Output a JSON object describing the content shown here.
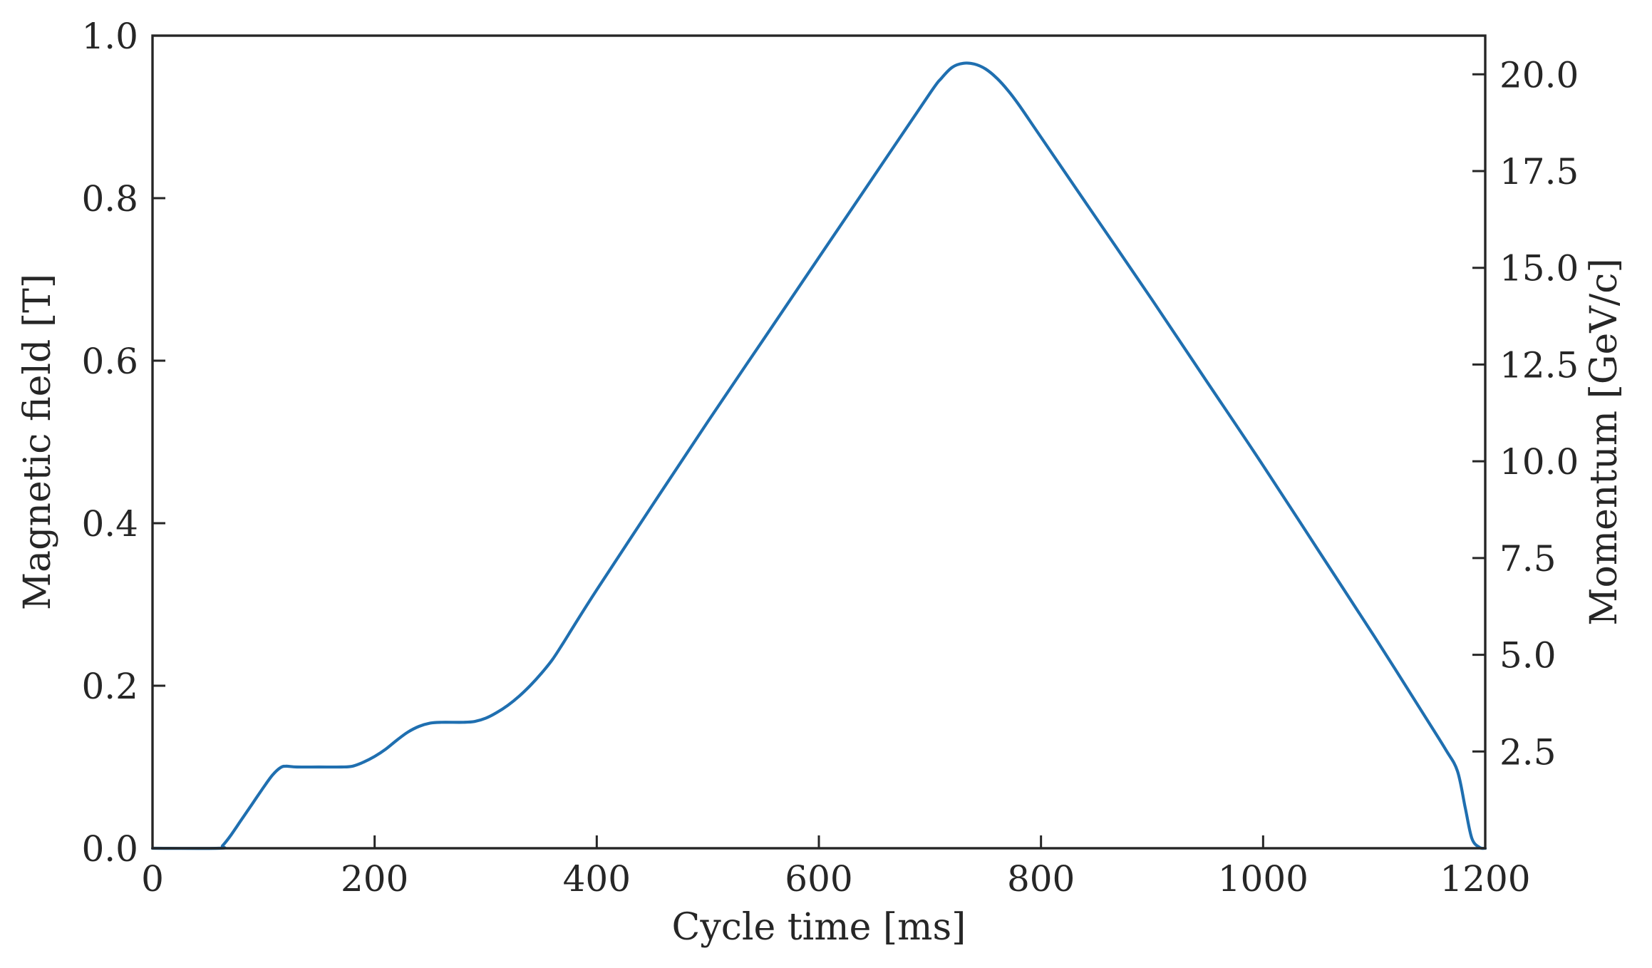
{
  "chart_data": {
    "type": "line",
    "title": "",
    "xlabel": "Cycle time [ms]",
    "ylabel": "Magnetic field [T]",
    "y2label": "Momentum [GeV/c]",
    "xlim": [
      0,
      1200
    ],
    "ylim": [
      0,
      1.0
    ],
    "y2lim": [
      0,
      21.0
    ],
    "xticks": [
      0,
      200,
      400,
      600,
      800,
      1000,
      1200
    ],
    "xtick_labels": [
      "0",
      "200",
      "400",
      "600",
      "800",
      "1000",
      "1200"
    ],
    "yticks": [
      0.0,
      0.2,
      0.4,
      0.6,
      0.8,
      1.0
    ],
    "ytick_labels": [
      "0.0",
      "0.2",
      "0.4",
      "0.6",
      "0.8",
      "1.0"
    ],
    "y2ticks": [
      2.5,
      5.0,
      7.5,
      10.0,
      12.5,
      15.0,
      17.5,
      20.0
    ],
    "y2tick_labels": [
      "2.5",
      "5.0",
      "7.5",
      "10.0",
      "12.5",
      "15.0",
      "17.5",
      "20.0"
    ],
    "grid": false,
    "line_color": "#1f6fb0",
    "series": [
      {
        "x": [
          0,
          60,
          63,
          70,
          80,
          90,
          100,
          108,
          115,
          120,
          130,
          150,
          170,
          180,
          190,
          200,
          210,
          220,
          230,
          240,
          250,
          260,
          280,
          290,
          300,
          310,
          320,
          330,
          340,
          350,
          360,
          370,
          380,
          400,
          450,
          500,
          550,
          600,
          650,
          700,
          710,
          720,
          730,
          740,
          750,
          760,
          770,
          780,
          800,
          850,
          900,
          950,
          1000,
          1050,
          1100,
          1150,
          1165,
          1175,
          1182,
          1188,
          1195,
          1200
        ],
        "y": [
          0.0,
          0.0,
          0.003,
          0.015,
          0.035,
          0.055,
          0.075,
          0.09,
          0.099,
          0.101,
          0.1,
          0.1,
          0.1,
          0.101,
          0.106,
          0.113,
          0.122,
          0.133,
          0.143,
          0.15,
          0.154,
          0.155,
          0.155,
          0.156,
          0.16,
          0.167,
          0.176,
          0.187,
          0.2,
          0.215,
          0.232,
          0.253,
          0.275,
          0.318,
          0.422,
          0.525,
          0.626,
          0.727,
          0.828,
          0.929,
          0.947,
          0.961,
          0.966,
          0.965,
          0.959,
          0.948,
          0.933,
          0.915,
          0.875,
          0.775,
          0.675,
          0.573,
          0.471,
          0.366,
          0.261,
          0.153,
          0.12,
          0.095,
          0.05,
          0.012,
          0.001,
          0.0
        ]
      }
    ]
  }
}
